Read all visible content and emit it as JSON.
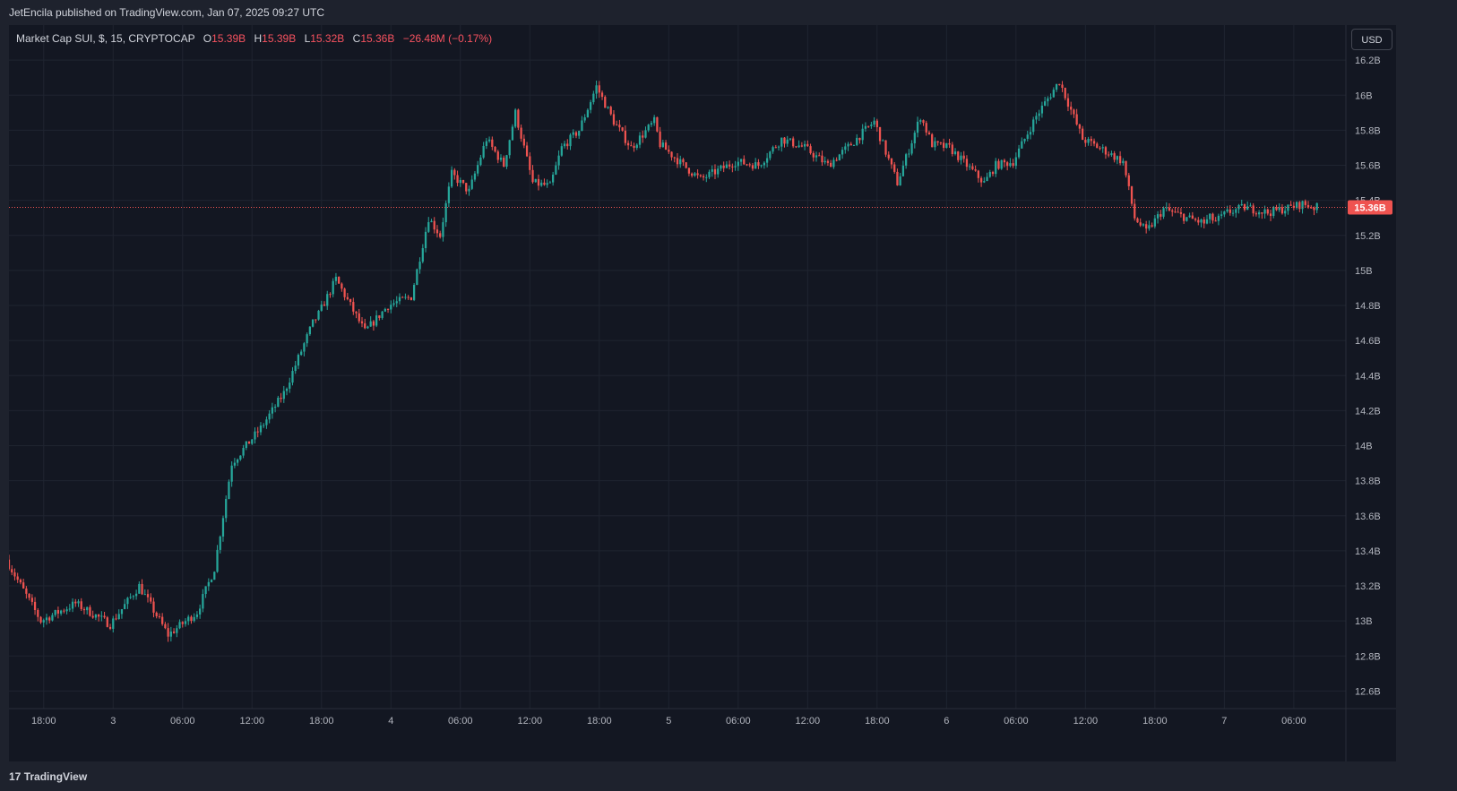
{
  "banner": {
    "text": "JetEncila published on TradingView.com, Jan 07, 2025 09:27 UTC"
  },
  "legend": {
    "symbol": "Market Cap SUI, $, 15, CRYPTOCAP",
    "o_label": "O",
    "o_value": "15.39B",
    "h_label": "H",
    "h_value": "15.39B",
    "l_label": "L",
    "l_value": "15.32B",
    "c_label": "C",
    "c_value": "15.36B",
    "change": "−26.48M (−0.17%)"
  },
  "currency_button": "USD",
  "footer": {
    "logo_mark": "17",
    "brand": "TradingView"
  },
  "colors": {
    "background": "#131722",
    "up": "#26a69a",
    "down": "#ef5350",
    "grid": "#1f2430",
    "price_line": "#ef5350"
  },
  "chart_data": {
    "type": "candlestick",
    "timeframe_minutes": 15,
    "y_unit": "B (billion USD)",
    "ylim": [
      12.5,
      16.4
    ],
    "y_ticks": [
      12.6,
      12.8,
      13.0,
      13.2,
      13.4,
      13.6,
      13.8,
      14.0,
      14.2,
      14.4,
      14.6,
      14.8,
      15.0,
      15.2,
      15.4,
      15.6,
      15.8,
      16.0,
      16.2
    ],
    "y_tick_labels": [
      "12.6B",
      "12.8B",
      "13B",
      "13.2B",
      "13.4B",
      "13.6B",
      "13.8B",
      "14B",
      "14.2B",
      "14.4B",
      "14.6B",
      "14.8B",
      "15B",
      "15.2B",
      "15.4B",
      "15.6B",
      "15.8B",
      "16B",
      "16.2B"
    ],
    "x_tick_labels": [
      "18:00",
      "3",
      "06:00",
      "12:00",
      "18:00",
      "4",
      "06:00",
      "12:00",
      "18:00",
      "5",
      "06:00",
      "12:00",
      "18:00",
      "6",
      "06:00",
      "12:00",
      "18:00",
      "7",
      "06:00"
    ],
    "x_tick_hours": [
      0,
      6,
      12,
      18,
      24,
      30,
      36,
      42,
      48,
      54,
      60,
      66,
      72,
      78,
      84,
      90,
      96,
      102,
      108
    ],
    "last_price_label": "15.36B",
    "last_price": 15.36,
    "grid": true,
    "series_waypoints_hours": [
      -3,
      0,
      3,
      6,
      8.5,
      11,
      13.5,
      15,
      16.5,
      19,
      21,
      23.5,
      24,
      25.5,
      28,
      30,
      32,
      33.5,
      34.5,
      35.5,
      37,
      38.5,
      40,
      41,
      42.5,
      44,
      45,
      46.5,
      48,
      49.5,
      51,
      53,
      53.5,
      55.5,
      57,
      60,
      62,
      64,
      66,
      68,
      70,
      72,
      74,
      76,
      77,
      78.5,
      80,
      81.5,
      82.5,
      84,
      86,
      88,
      90,
      92,
      93.5,
      94.5,
      95.5,
      97,
      99,
      100.5,
      101,
      101.5,
      102.5,
      104,
      106,
      108,
      109,
      110
    ],
    "series_waypoints_values": [
      13.35,
      13.0,
      13.1,
      12.98,
      13.2,
      12.92,
      13.05,
      13.3,
      13.9,
      14.1,
      14.3,
      14.7,
      14.75,
      14.95,
      14.65,
      14.8,
      14.85,
      15.3,
      15.2,
      15.55,
      15.45,
      15.75,
      15.6,
      15.9,
      15.5,
      15.48,
      15.7,
      15.8,
      16.05,
      15.85,
      15.7,
      15.85,
      15.72,
      15.6,
      15.52,
      15.62,
      15.6,
      15.75,
      15.7,
      15.6,
      15.72,
      15.85,
      15.5,
      15.88,
      15.72,
      15.7,
      15.6,
      15.5,
      15.6,
      15.62,
      15.88,
      16.08,
      15.75,
      15.68,
      15.62,
      15.3,
      15.22,
      15.35,
      15.3,
      15.27,
      15.3,
      15.28,
      15.33,
      15.36,
      15.33,
      15.36,
      15.38,
      15.36
    ],
    "x_start_hour": -3,
    "x_end_hour": 112.5
  }
}
